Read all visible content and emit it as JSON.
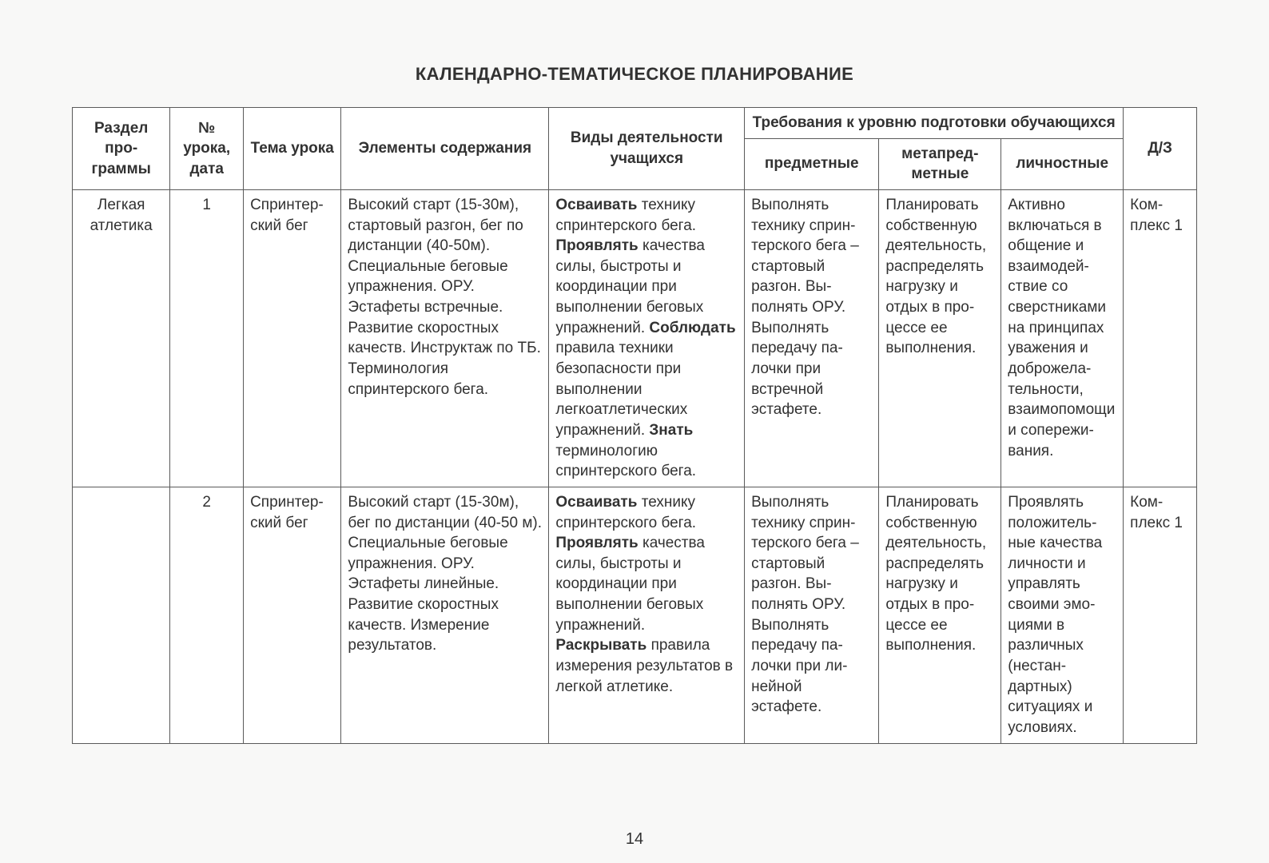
{
  "title": "КАЛЕНДАРНО-ТЕМАТИЧЕСКОЕ ПЛАНИРОВАНИЕ",
  "pageNumber": "14",
  "headers": {
    "section": "Раздел про­граммы",
    "num": "№ урока, дата",
    "topic": "Тема урока",
    "elements": "Элементы содержания",
    "activity": "Виды деятельно­сти учащихся",
    "reqGroup": "Требования к уровню подготовки обучающихся",
    "subject": "предметные",
    "meta": "метапред­метные",
    "personal": "личност­ные",
    "dz": "Д/З"
  },
  "rows": [
    {
      "section": "Легкая атлетика",
      "num": "1",
      "topic": "Спринтер­ский бег",
      "elements": "Высокий старт (15-30м), стартовый разгон, бег по дистанции (40-50м). Специальные беговые упражнения. ОРУ. Эстафеты встречные. Развитие скоростных качеств. Инструктаж по ТБ. Терминология спринтерского бега.",
      "activity_html": "<b>Осваивать</b> технику спринтерского бега. <b>Проявлять</b> качества силы, быстроты и координации при выполнении беговых упражнений. <b>Со­блюдать</b> правила техники безопасно­сти при выполнении легкоатлетических упражнений. <b>Знать</b> терминологию спринтерского бега.",
      "subject": "Выполнять технику сприн­терского бега – стартовый разгон. Вы­полнять ОРУ. Выполнять передачу па­лочки при встречной эстафете.",
      "meta": "Планировать собственную деятель­ность, рас­пределять нагрузку и отдых в про­цессе ее выполнения.",
      "personal": "Активно включаться в общение и взаимодей­ствие со сверстника­ми на прин­ципах ува­жения и доброжела­тельности, взаимопо­мощи и сопережи­вания.",
      "dz": "Ком­плекс 1"
    },
    {
      "section": "",
      "num": "2",
      "topic": "Спринтер­ский бег",
      "elements": "Высокий старт (15-30м), бег по дистанции (40-50 м). Специаль­ные беговые упражне­ния. ОРУ. Эстафеты линейные. Развитие скоростных качеств. Измерение результа­тов.",
      "activity_html": "<b>Осваивать</b> технику спринтерского бега. <b>Проявлять</b> качества силы, быстроты и координации при выполнении беговых упражнений. <b>Раскрывать</b> прави­ла измерения ре­зультатов в легкой атлетике.",
      "subject": "Выполнять технику сприн­терского бега – стартовый разгон. Вы­полнять ОРУ. Выполнять передачу па­лочки при ли­нейной эстафете.",
      "meta": "Планировать собственную деятель­ность, рас­пределять нагрузку и отдых в про­цессе ее выполнения.",
      "personal": "Проявлять положитель­ные качества личности и управлять своими эмо­циями в различных (нестан­дартных) ситуациях и условиях.",
      "dz": "Ком­плекс 1"
    }
  ]
}
